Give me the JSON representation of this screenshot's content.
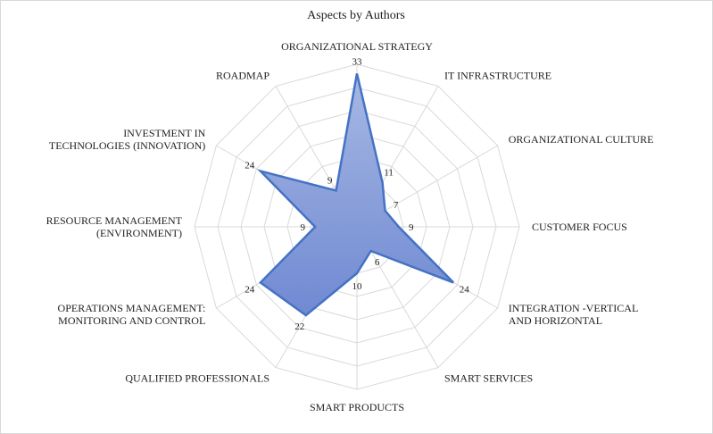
{
  "chart_data": {
    "type": "radar",
    "title": "Aspects by Authors",
    "categories": [
      "ORGANIZATIONAL STRATEGY",
      "IT INFRASTRUCTURE",
      "ORGANIZATIONAL CULTURE",
      "CUSTOMER FOCUS",
      "INTEGRATION -VERTICAL AND HORIZONTAL",
      "SMART SERVICES",
      "SMART PRODUCTS",
      "QUALIFIED PROFESSIONALS",
      "OPERATIONS MANAGEMENT: MONITORING AND CONTROL",
      "RESOURCE MANAGEMENT (ENVIRONMENT)",
      "INVESTMENT IN TECHNOLOGIES (INNOVATION)",
      "ROADMAP"
    ],
    "values": [
      33,
      11,
      7,
      9,
      24,
      6,
      10,
      22,
      24,
      9,
      24,
      9
    ],
    "rmax": 35,
    "grid": true,
    "colors": {
      "fill": "#8fa4da",
      "line": "#4472c4",
      "grid": "#d9d9d9"
    }
  }
}
